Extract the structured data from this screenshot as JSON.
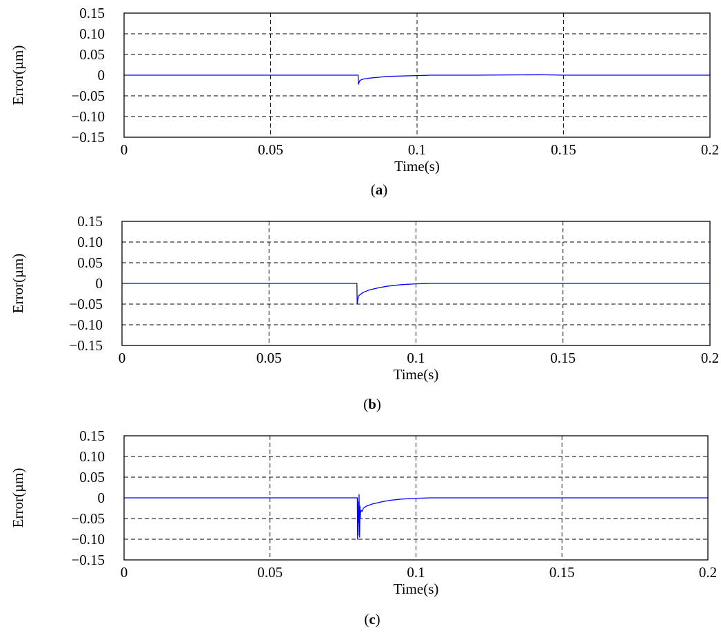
{
  "figure": {
    "panels": [
      {
        "caption_open": "(",
        "caption_letter": "a",
        "caption_close": ")"
      },
      {
        "caption_open": "(",
        "caption_letter": "b",
        "caption_close": ")"
      },
      {
        "caption_open": "(",
        "caption_letter": "c",
        "caption_close": ")"
      }
    ]
  },
  "chart_data": [
    {
      "type": "line",
      "panel": "a",
      "title": "",
      "xlabel": "Time(s)",
      "ylabel": "Error(µm)",
      "xlim": [
        0,
        0.2
      ],
      "ylim": [
        -0.15,
        0.15
      ],
      "xticks": [
        0,
        0.05,
        0.1,
        0.15,
        0.2
      ],
      "xtick_labels": [
        "0",
        "0.05",
        "0.1",
        "0.15",
        "0.2"
      ],
      "yticks": [
        0.15,
        0.1,
        0.05,
        0,
        -0.05,
        -0.1,
        -0.15
      ],
      "ytick_labels": [
        "0.15",
        "0.10",
        "0.05",
        "0",
        "−0.05",
        "−0.10",
        "−0.15"
      ],
      "grid": true,
      "grid_style": "dashed",
      "series_color": "#0000ff",
      "series": [
        {
          "x": [
            0,
            0.0799,
            0.08,
            0.0802,
            0.0805,
            0.081,
            0.082,
            0.084,
            0.087,
            0.09,
            0.095,
            0.1,
            0.105,
            0.12,
            0.142,
            0.15,
            0.2
          ],
          "y": [
            0,
            0,
            -0.022,
            -0.018,
            -0.013,
            -0.011,
            -0.009,
            -0.007,
            -0.005,
            -0.003,
            -0.002,
            -0.001,
            0.0,
            0.0,
            0.001,
            0.0,
            0
          ]
        }
      ]
    },
    {
      "type": "line",
      "panel": "b",
      "title": "",
      "xlabel": "Time(s)",
      "ylabel": "Error(µm)",
      "xlim": [
        0,
        0.2
      ],
      "ylim": [
        -0.15,
        0.15
      ],
      "xticks": [
        0,
        0.05,
        0.1,
        0.15,
        0.2
      ],
      "xtick_labels": [
        "0",
        "0.05",
        "0.1",
        "0.15",
        "0.2"
      ],
      "yticks": [
        0.15,
        0.1,
        0.05,
        0,
        -0.05,
        -0.1,
        -0.15
      ],
      "ytick_labels": [
        "0.15",
        "0.10",
        "0.05",
        "0",
        "−0.05",
        "−0.10",
        "−0.15"
      ],
      "grid": true,
      "grid_style": "dashed",
      "series_color": "#0000ff",
      "series": [
        {
          "x": [
            0,
            0.0799,
            0.08,
            0.0802,
            0.0805,
            0.081,
            0.082,
            0.084,
            0.087,
            0.09,
            0.095,
            0.1,
            0.105,
            0.12,
            0.15,
            0.2
          ],
          "y": [
            0,
            0,
            -0.05,
            -0.04,
            -0.03,
            -0.027,
            -0.022,
            -0.016,
            -0.011,
            -0.007,
            -0.003,
            -0.001,
            0.0,
            0.0,
            0.0,
            0
          ]
        }
      ]
    },
    {
      "type": "line",
      "panel": "c",
      "title": "",
      "xlabel": "Time(s)",
      "ylabel": "Error(µm)",
      "xlim": [
        0,
        0.2
      ],
      "ylim": [
        -0.15,
        0.15
      ],
      "xticks": [
        0,
        0.05,
        0.1,
        0.15,
        0.2
      ],
      "xtick_labels": [
        "0",
        "0.05",
        "0.1",
        "0.15",
        "0.2"
      ],
      "yticks": [
        0.15,
        0.1,
        0.05,
        0,
        -0.05,
        -0.1,
        -0.15
      ],
      "ytick_labels": [
        "0.15",
        "0.10",
        "0.05",
        "0",
        "−0.05",
        "−0.10",
        "−0.15"
      ],
      "grid": true,
      "grid_style": "dashed",
      "series_color": "#0000ff",
      "series": [
        {
          "x": [
            0,
            0.0799,
            0.08,
            0.0801,
            0.0802,
            0.0803,
            0.0804,
            0.0805,
            0.0806,
            0.0807,
            0.0808,
            0.0809,
            0.081,
            0.0812,
            0.0815,
            0.082,
            0.083,
            0.085,
            0.088,
            0.091,
            0.095,
            0.1,
            0.105,
            0.12,
            0.15,
            0.2
          ],
          "y": [
            0,
            0,
            -0.1,
            -0.03,
            -0.09,
            -0.01,
            -0.06,
            0.008,
            -0.04,
            -0.095,
            -0.02,
            -0.05,
            -0.035,
            -0.03,
            -0.033,
            -0.025,
            -0.02,
            -0.015,
            -0.01,
            -0.006,
            -0.003,
            -0.001,
            0.0,
            0.0,
            0.0,
            0
          ]
        }
      ]
    }
  ]
}
